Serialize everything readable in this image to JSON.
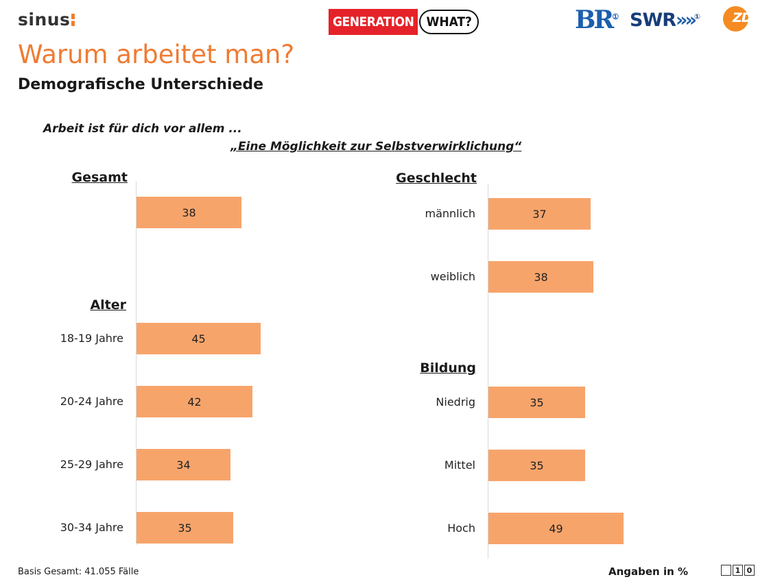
{
  "header": {
    "brand": "sinus",
    "generation_label": "GENERATION",
    "what_label": "WHAT?",
    "br_label": "BR",
    "swr_label": "SWR",
    "zdf_label": "ZDF"
  },
  "title": "Warum arbeitet man?",
  "subtitle": "Demografische Unterschiede",
  "question": {
    "line1": "Arbeit ist für dich vor allem ...",
    "line2": "„Eine Möglichkeit zur Selbstverwirklichung“"
  },
  "chart_data": {
    "type": "bar",
    "orientation": "horizontal",
    "unit": "%",
    "xlim": [
      0,
      100
    ],
    "color": "#f7a46b",
    "groups": [
      {
        "name": "Gesamt",
        "categories": [
          ""
        ],
        "values": [
          38
        ]
      },
      {
        "name": "Alter",
        "categories": [
          "18-19 Jahre",
          "20-24 Jahre",
          "25-29 Jahre",
          "30-34 Jahre"
        ],
        "values": [
          45,
          42,
          34,
          35
        ]
      },
      {
        "name": "Geschlecht",
        "categories": [
          "männlich",
          "weiblich"
        ],
        "values": [
          37,
          38
        ]
      },
      {
        "name": "Bildung",
        "categories": [
          "Niedrig",
          "Mittel",
          "Hoch"
        ],
        "values": [
          35,
          35,
          49
        ]
      }
    ]
  },
  "footer": {
    "basis": "Basis Gesamt: 41.055 Fälle",
    "units": "Angaben in %",
    "page_digits": [
      "",
      "1",
      "0"
    ]
  }
}
